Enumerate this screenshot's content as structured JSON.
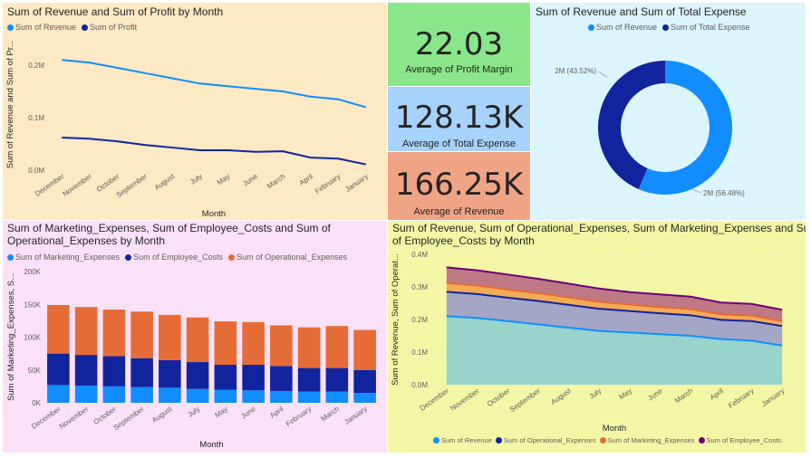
{
  "colors": {
    "revenue": "#118dff",
    "profit": "#12239e",
    "marketing": "#118dff",
    "employee": "#12239e",
    "operational": "#e66c37",
    "employee_costs": "#6b007b"
  },
  "kpis": {
    "profit_margin": {
      "value": "22.03",
      "label": "Average of Profit Margin"
    },
    "total_expense": {
      "value": "128.13K",
      "label": "Average of Total Expense"
    },
    "revenue": {
      "value": "166.25K",
      "label": "Average of Revenue"
    }
  },
  "chart_data": [
    {
      "id": "line",
      "type": "line",
      "title": "Sum of Revenue and Sum of Profit by Month",
      "xlabel": "Month",
      "ylabel": "Sum of Revenue and Sum of Pr...",
      "categories": [
        "December",
        "November",
        "October",
        "September",
        "August",
        "July",
        "May",
        "June",
        "March",
        "April",
        "February",
        "January"
      ],
      "yticks": [
        "0.0M",
        "0.1M",
        "0.2M"
      ],
      "ylim": [
        0,
        0.25
      ],
      "series": [
        {
          "name": "Sum of Revenue",
          "color": "#118dff",
          "values": [
            0.21,
            0.205,
            0.195,
            0.185,
            0.175,
            0.165,
            0.16,
            0.155,
            0.15,
            0.14,
            0.135,
            0.12
          ]
        },
        {
          "name": "Sum of Profit",
          "color": "#12239e",
          "values": [
            0.062,
            0.06,
            0.055,
            0.048,
            0.043,
            0.038,
            0.038,
            0.035,
            0.036,
            0.024,
            0.022,
            0.011
          ]
        }
      ]
    },
    {
      "id": "donut",
      "type": "pie",
      "title": "Sum of Revenue and Sum of Total Expense",
      "series": [
        {
          "name": "Sum of Revenue",
          "color": "#118dff",
          "value": 56.48,
          "label": "2M (56.48%)"
        },
        {
          "name": "Sum of Total Expense",
          "color": "#12239e",
          "value": 43.52,
          "label": "2M (43.52%)"
        }
      ]
    },
    {
      "id": "bar",
      "type": "bar",
      "title_line1": "Sum of Marketing_Expenses, Sum of Employee_Costs and Sum of",
      "title_line2": "Operational_Expenses by Month",
      "xlabel": "Month",
      "ylabel": "Sum of Marketing_Expenses, S...",
      "categories": [
        "December",
        "November",
        "October",
        "September",
        "August",
        "July",
        "May",
        "June",
        "April",
        "February",
        "March",
        "January"
      ],
      "yticks": [
        "0K",
        "50K",
        "100K",
        "150K",
        "200K"
      ],
      "ylim": [
        0,
        200
      ],
      "series": [
        {
          "name": "Sum of Marketing_Expenses",
          "color": "#118dff",
          "values": [
            27,
            26,
            25,
            24,
            23,
            21,
            20,
            19,
            18,
            17,
            17,
            15
          ]
        },
        {
          "name": "Sum of Employee_Costs",
          "color": "#12239e",
          "values": [
            48,
            47,
            46,
            44,
            42,
            41,
            38,
            39,
            38,
            36,
            36,
            35
          ]
        },
        {
          "name": "Sum of Operational_Expenses",
          "color": "#e66c37",
          "values": [
            74,
            73,
            71,
            71,
            69,
            68,
            66,
            65,
            62,
            62,
            64,
            61
          ]
        }
      ]
    },
    {
      "id": "area",
      "type": "area",
      "title_line1": "Sum of Revenue, Sum of Operational_Expenses, Sum of Marketing_Expenses and Sum",
      "title_line2": "of Employee_Costs by Month",
      "xlabel": "Month",
      "ylabel": "Sum of Revenue, Sum of Operat...",
      "categories": [
        "December",
        "November",
        "October",
        "September",
        "August",
        "July",
        "May",
        "June",
        "March",
        "April",
        "February",
        "January"
      ],
      "yticks": [
        "0.0M",
        "0.1M",
        "0.2M",
        "0.3M",
        "0.4M"
      ],
      "ylim": [
        0,
        0.4
      ],
      "series": [
        {
          "name": "Sum of Revenue",
          "color": "#118dff",
          "values": [
            0.21,
            0.205,
            0.195,
            0.185,
            0.175,
            0.165,
            0.16,
            0.155,
            0.15,
            0.14,
            0.135,
            0.12
          ]
        },
        {
          "name": "Sum of Operational_Expenses",
          "color": "#12239e",
          "values": [
            0.285,
            0.278,
            0.267,
            0.257,
            0.245,
            0.233,
            0.226,
            0.219,
            0.213,
            0.199,
            0.195,
            0.18
          ]
        },
        {
          "name": "Sum of Marketing_Expenses",
          "color": "#e66c37",
          "values": [
            0.312,
            0.304,
            0.292,
            0.281,
            0.268,
            0.254,
            0.246,
            0.238,
            0.232,
            0.216,
            0.212,
            0.195
          ]
        },
        {
          "name": "Sum of Employee_Costs",
          "color": "#6b007b",
          "values": [
            0.36,
            0.351,
            0.338,
            0.325,
            0.31,
            0.295,
            0.284,
            0.277,
            0.27,
            0.252,
            0.248,
            0.23
          ]
        }
      ]
    }
  ]
}
